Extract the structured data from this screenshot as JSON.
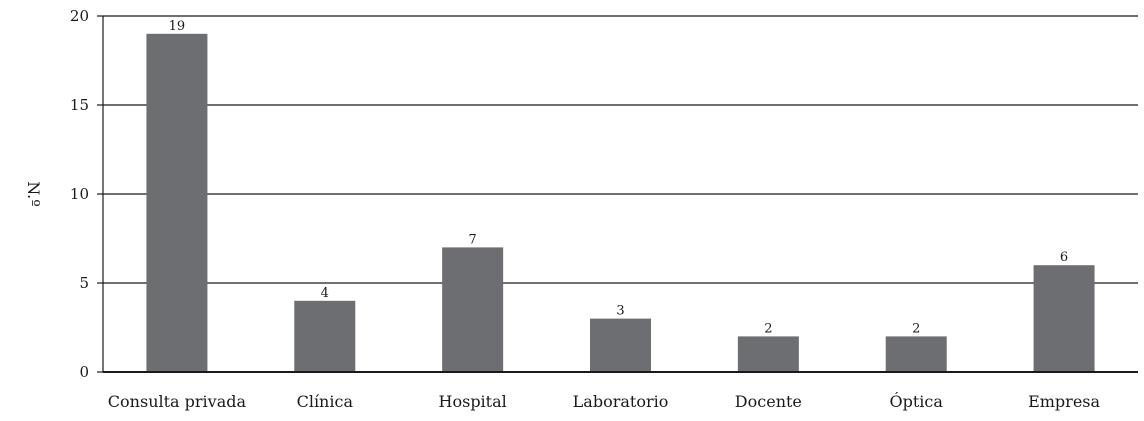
{
  "chart_data": {
    "type": "bar",
    "title": "",
    "xlabel": "",
    "ylabel": "N.º",
    "ylim": [
      0,
      20
    ],
    "yticks": [
      0,
      5,
      10,
      15,
      20
    ],
    "grid": true,
    "categories": [
      "Consulta privada",
      "Clínica",
      "Hospital",
      "Laboratorio",
      "Docente",
      "Óptica",
      "Empresa"
    ],
    "values": [
      19,
      4,
      7,
      3,
      2,
      2,
      6
    ],
    "data_labels": [
      "19",
      "4",
      "7",
      "3",
      "2",
      "2",
      "6"
    ],
    "bar_color": "#6d6e71",
    "grid_color": "#1a1a1a"
  }
}
